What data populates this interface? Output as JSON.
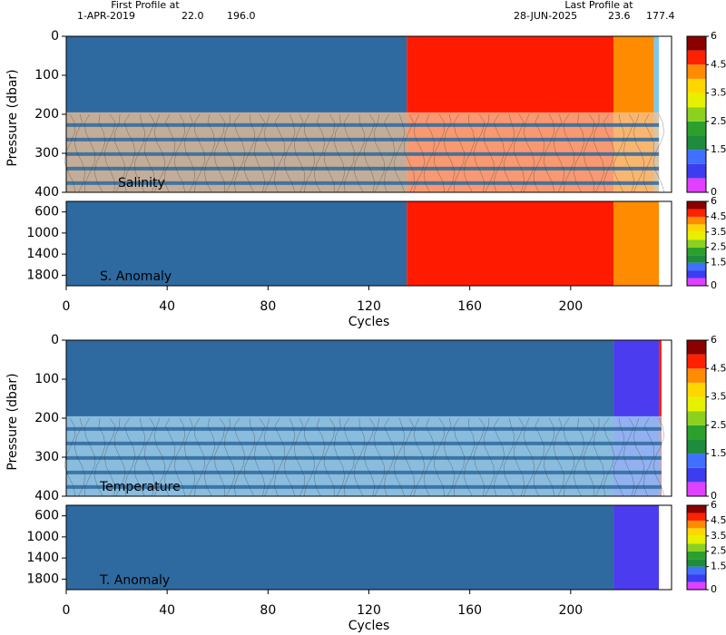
{
  "header": {
    "first_label": "First Profile at",
    "first_date": "1-APR-2019",
    "first_lat": "22.0",
    "first_lon": "196.0",
    "last_label": "Last Profile at",
    "last_date": "28-JUN-2025",
    "last_lat": "23.6",
    "last_lon": "177.4"
  },
  "chart_data": [
    {
      "type": "heatmap",
      "title": "Salinity",
      "ylabel": "Pressure (dbar)",
      "xlim": [
        0,
        240
      ],
      "ylim": [
        0,
        400
      ],
      "yticks": [
        0,
        100,
        200,
        300,
        400
      ],
      "bands": [
        {
          "start": 0,
          "end": 135,
          "color": "#2e6a9f"
        },
        {
          "start": 135,
          "end": 217,
          "color": "#ff1a00"
        },
        {
          "start": 217,
          "end": 233,
          "color": "#ff8c00"
        },
        {
          "start": 233,
          "end": 235,
          "color": "#7cc8f0"
        }
      ],
      "overlay": {
        "start": 195,
        "color": "#f6c497"
      },
      "colorbar": {
        "levels": [
          0,
          0.5,
          1,
          1.5,
          2,
          2.5,
          3,
          3.5,
          4,
          4.5,
          5,
          6
        ],
        "colors": [
          "#e040ff",
          "#3c3cf0",
          "#4070ff",
          "#1e8c3c",
          "#2ca02c",
          "#8cd020",
          "#e6f000",
          "#ffd700",
          "#ff8c00",
          "#ff2000",
          "#8b0000"
        ],
        "ticks": [
          0,
          1.5,
          2.5,
          3.5,
          4.5,
          6
        ]
      }
    },
    {
      "type": "heatmap",
      "title": "S. Anomaly",
      "xlabel": "Cycles",
      "xlim": [
        0,
        240
      ],
      "xticks": [
        0,
        40,
        80,
        120,
        160,
        200
      ],
      "ylim": [
        400,
        2000
      ],
      "yticks": [
        600,
        1000,
        1400,
        1800
      ],
      "bands": [
        {
          "start": 0,
          "end": 135,
          "color": "#2e6a9f"
        },
        {
          "start": 135,
          "end": 217,
          "color": "#ff1a00"
        },
        {
          "start": 217,
          "end": 235,
          "color": "#ff8c00"
        }
      ],
      "colorbar": {
        "levels": [
          0,
          0.5,
          1,
          1.5,
          2,
          2.5,
          3,
          3.5,
          4,
          4.5,
          5,
          6
        ],
        "colors": [
          "#e040ff",
          "#3c3cf0",
          "#4070ff",
          "#1e8c3c",
          "#2ca02c",
          "#8cd020",
          "#e6f000",
          "#ffd700",
          "#ff8c00",
          "#ff2000",
          "#8b0000"
        ],
        "ticks": [
          0,
          1.5,
          2.5,
          3.5,
          4.5,
          6
        ]
      }
    },
    {
      "type": "heatmap",
      "title": "Temperature",
      "ylabel": "Pressure (dbar)",
      "xlim": [
        0,
        240
      ],
      "ylim": [
        0,
        400
      ],
      "yticks": [
        0,
        100,
        200,
        300,
        400
      ],
      "bands": [
        {
          "start": 0,
          "end": 217,
          "color": "#2e6a9f"
        },
        {
          "start": 217,
          "end": 235,
          "color": "#4b3cf0"
        },
        {
          "start": 235,
          "end": 236,
          "color": "#ff1a00"
        }
      ],
      "overlay": {
        "start": 195,
        "color": "#a9d8f2"
      },
      "colorbar": {
        "levels": [
          0,
          0.5,
          1,
          1.5,
          2,
          2.5,
          3,
          3.5,
          4,
          4.5,
          5,
          6
        ],
        "colors": [
          "#e040ff",
          "#3c3cf0",
          "#4070ff",
          "#1e8c3c",
          "#2ca02c",
          "#8cd020",
          "#e6f000",
          "#ffd700",
          "#ff8c00",
          "#ff2000",
          "#8b0000"
        ],
        "ticks": [
          0,
          1.5,
          2.5,
          3.5,
          4.5,
          6
        ]
      }
    },
    {
      "type": "heatmap",
      "title": "T. Anomaly",
      "xlabel": "Cycles",
      "xlim": [
        0,
        240
      ],
      "xticks": [
        0,
        40,
        80,
        120,
        160,
        200
      ],
      "ylim": [
        400,
        2000
      ],
      "yticks": [
        600,
        1000,
        1400,
        1800
      ],
      "bands": [
        {
          "start": 0,
          "end": 217,
          "color": "#2e6a9f"
        },
        {
          "start": 217,
          "end": 235,
          "color": "#4b3cf0"
        }
      ],
      "colorbar": {
        "levels": [
          0,
          0.5,
          1,
          1.5,
          2,
          2.5,
          3,
          3.5,
          4,
          4.5,
          5,
          6
        ],
        "colors": [
          "#e040ff",
          "#3c3cf0",
          "#4070ff",
          "#1e8c3c",
          "#2ca02c",
          "#8cd020",
          "#e6f000",
          "#ffd700",
          "#ff8c00",
          "#ff2000",
          "#8b0000"
        ],
        "ticks": [
          0,
          1.5,
          2.5,
          3.5,
          4.5,
          6
        ]
      }
    }
  ]
}
